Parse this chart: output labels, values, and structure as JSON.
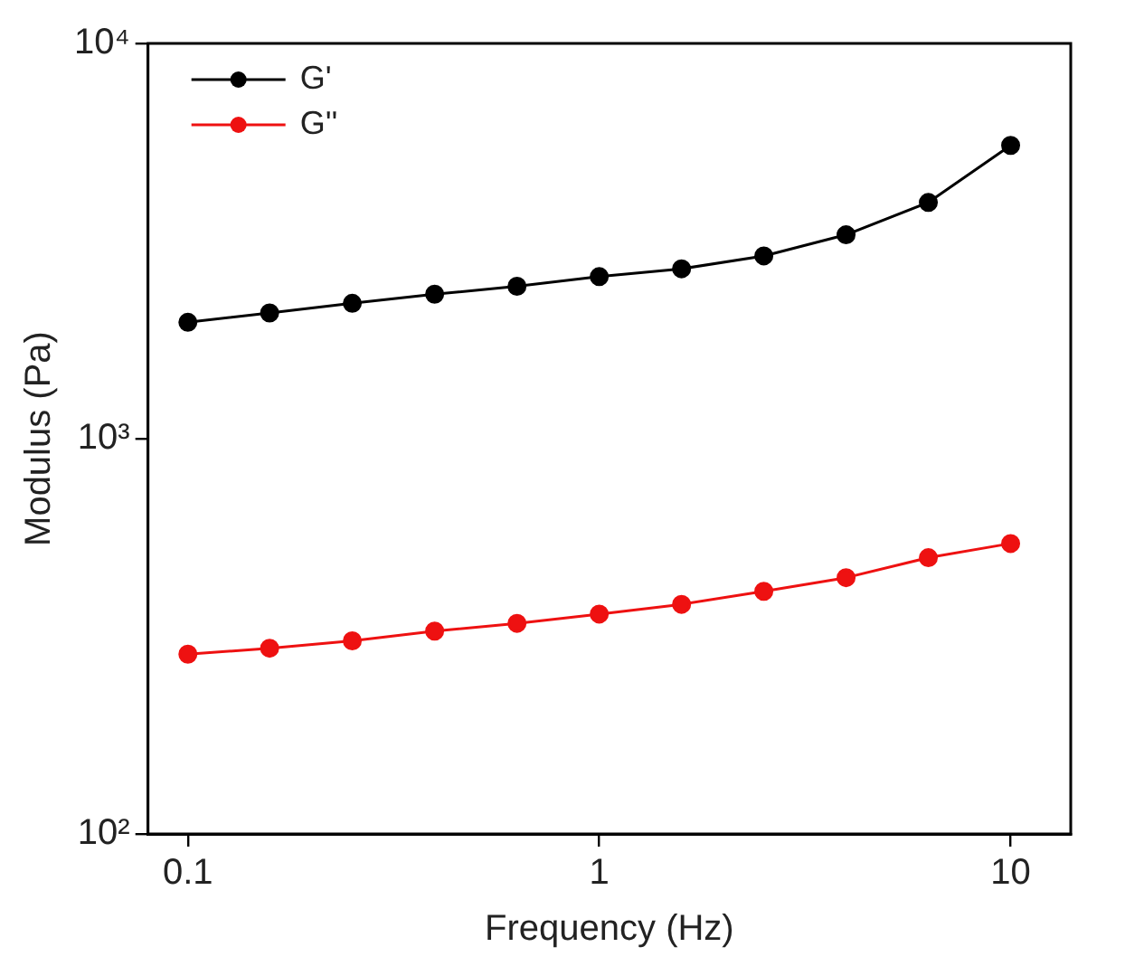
{
  "chart_data": {
    "type": "line",
    "xlabel": "Frequency (Hz)",
    "ylabel": "Modulus (Pa)",
    "log": "xy",
    "marker": "circle",
    "line_style": "solid",
    "grid": false,
    "legend": "top left",
    "x": [
      0.1,
      0.158,
      0.251,
      0.398,
      0.631,
      1,
      1.585,
      2.512,
      3.981,
      6.31,
      10
    ],
    "xlim": [
      0.08,
      14
    ],
    "xticks": [
      0.1,
      1,
      10
    ],
    "ylim": [
      100,
      10000
    ],
    "yticks": [
      {
        "value": 100,
        "label": "10²"
      },
      {
        "value": 1000,
        "label": "10³"
      },
      {
        "value": 10000,
        "label": "10⁴"
      }
    ],
    "series": [
      {
        "name": "G'",
        "color": "#000000",
        "values": [
          1970,
          2080,
          2200,
          2320,
          2430,
          2570,
          2690,
          2900,
          3280,
          3960,
          5520
        ]
      },
      {
        "name": "G''",
        "color": "#ee1111",
        "values": [
          285,
          295,
          308,
          326,
          341,
          360,
          381,
          411,
          445,
          500,
          543
        ]
      }
    ]
  }
}
